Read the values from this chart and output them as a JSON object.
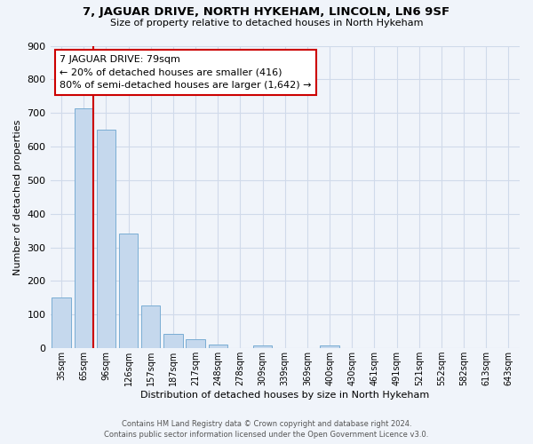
{
  "title": "7, JAGUAR DRIVE, NORTH HYKEHAM, LINCOLN, LN6 9SF",
  "subtitle": "Size of property relative to detached houses in North Hykeham",
  "xlabel": "Distribution of detached houses by size in North Hykeham",
  "ylabel": "Number of detached properties",
  "categories": [
    "35sqm",
    "65sqm",
    "96sqm",
    "126sqm",
    "157sqm",
    "187sqm",
    "217sqm",
    "248sqm",
    "278sqm",
    "309sqm",
    "339sqm",
    "369sqm",
    "400sqm",
    "430sqm",
    "461sqm",
    "491sqm",
    "521sqm",
    "552sqm",
    "582sqm",
    "613sqm",
    "643sqm"
  ],
  "values": [
    150,
    715,
    650,
    340,
    128,
    42,
    28,
    12,
    0,
    8,
    0,
    0,
    8,
    0,
    0,
    0,
    0,
    0,
    0,
    0,
    0
  ],
  "bar_color": "#c5d8ed",
  "bar_edge_color": "#7aadd4",
  "bg_color": "#f0f4fa",
  "grid_color": "#d0daea",
  "vline_color": "#cc0000",
  "vline_x": 1.425,
  "annotation_title": "7 JAGUAR DRIVE: 79sqm",
  "annotation_line1": "← 20% of detached houses are smaller (416)",
  "annotation_line2": "80% of semi-detached houses are larger (1,642) →",
  "annotation_box_color": "#ffffff",
  "annotation_box_edge": "#cc0000",
  "ylim": [
    0,
    900
  ],
  "yticks": [
    0,
    100,
    200,
    300,
    400,
    500,
    600,
    700,
    800,
    900
  ],
  "footer1": "Contains HM Land Registry data © Crown copyright and database right 2024.",
  "footer2": "Contains public sector information licensed under the Open Government Licence v3.0."
}
